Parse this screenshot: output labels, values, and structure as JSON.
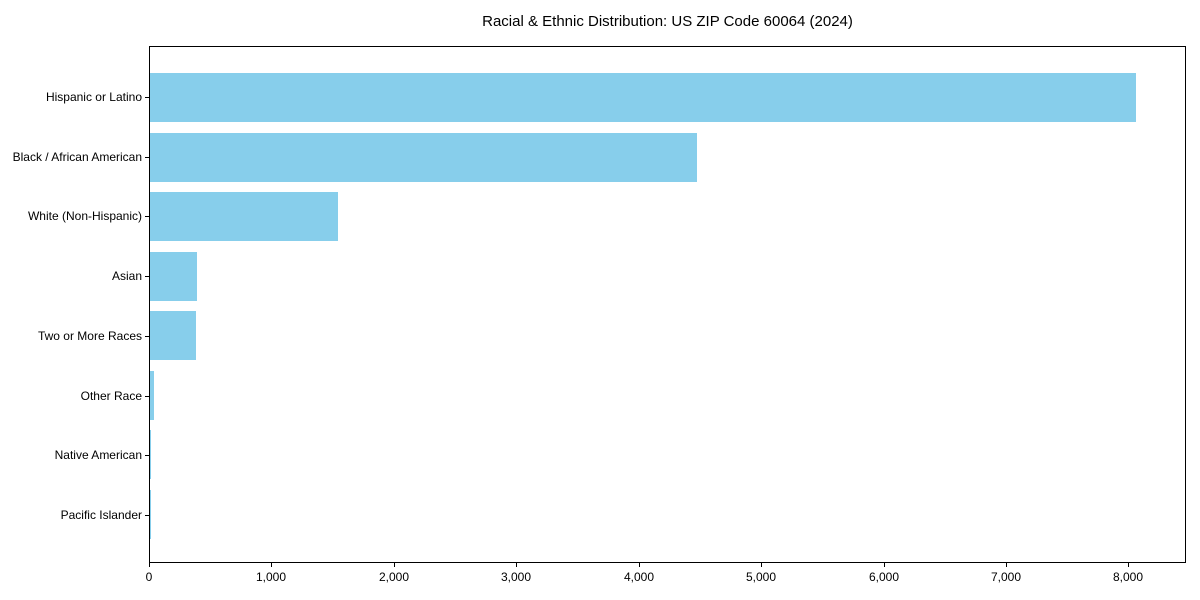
{
  "chart_data": {
    "type": "bar",
    "orientation": "horizontal",
    "title": "Racial & Ethnic Distribution: US ZIP Code 60064 (2024)",
    "categories": [
      "Hispanic or Latino",
      "Black / African American",
      "White (Non-Hispanic)",
      "Asian",
      "Two or More Races",
      "Other Race",
      "Native American",
      "Pacific Islander"
    ],
    "values": [
      8065,
      4476,
      1539,
      385,
      380,
      35,
      8,
      2
    ],
    "xlabel": "",
    "ylabel": "",
    "xlim": [
      0,
      8470
    ],
    "x_ticks": [
      0,
      1000,
      2000,
      3000,
      4000,
      5000,
      6000,
      7000,
      8000
    ],
    "x_tick_labels": [
      "0",
      "1,000",
      "2,000",
      "3,000",
      "4,000",
      "5,000",
      "6,000",
      "7,000",
      "8,000"
    ],
    "bar_color": "#87CEEB",
    "grid": false,
    "legend": null,
    "frame": true
  }
}
